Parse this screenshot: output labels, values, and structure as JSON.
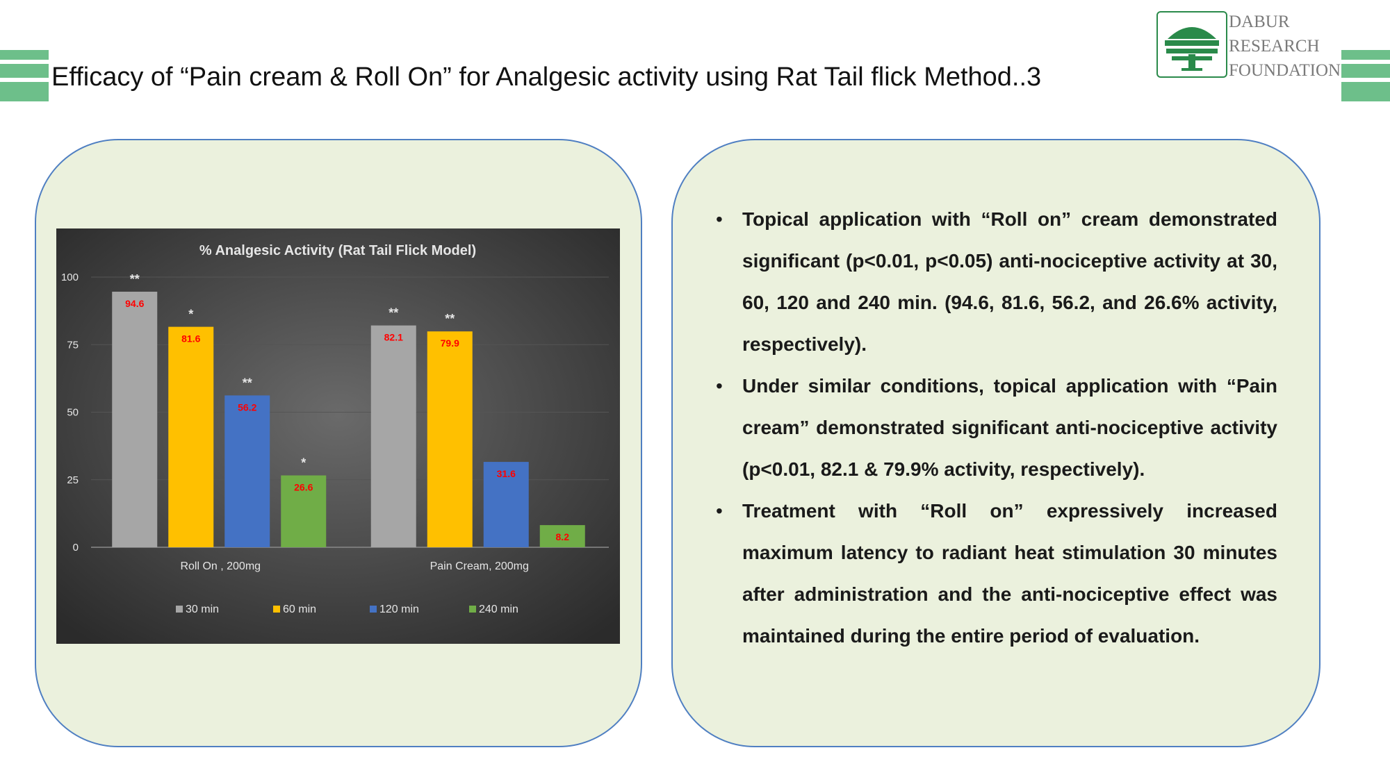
{
  "slide": {
    "title": "Efficacy of “Pain cream & Roll On” for Analgesic activity using Rat Tail flick Method..3",
    "logo_lines": [
      "DABUR",
      "RESEARCH",
      "FOUNDATION"
    ]
  },
  "chart_data": {
    "type": "bar",
    "title": "% Analgesic Activity (Rat Tail Flick Model)",
    "categories": [
      "Roll On , 200mg",
      "Pain Cream, 200mg"
    ],
    "yticks": [
      0,
      25,
      50,
      75,
      100
    ],
    "ylim": [
      0,
      100
    ],
    "legend_position": "bottom",
    "series": [
      {
        "name": "30 min",
        "color": "#a6a6a6",
        "values": [
          94.6,
          82.1
        ],
        "labels": [
          "94.6",
          "82.1"
        ],
        "sig": [
          "**",
          "**"
        ]
      },
      {
        "name": "60 min",
        "color": "#ffc000",
        "values": [
          81.6,
          79.9
        ],
        "labels": [
          "81.6",
          "79.9"
        ],
        "sig": [
          "*",
          "**"
        ]
      },
      {
        "name": "120 min",
        "color": "#4472c4",
        "values": [
          56.2,
          31.6
        ],
        "labels": [
          "56.2",
          "31.6"
        ],
        "sig": [
          "**",
          ""
        ]
      },
      {
        "name": "240 min",
        "color": "#70ad47",
        "values": [
          26.6,
          8.2
        ],
        "labels": [
          "26.6",
          "8.2"
        ],
        "sig": [
          "*",
          ""
        ]
      }
    ],
    "colors": {
      "background": "#3a3a3a",
      "text": "#e6e6e6",
      "data_label": "#ff0000",
      "grid": "#555555"
    }
  },
  "bullets": [
    "Topical application with “Roll on” cream demonstrated significant (p<0.01, p<0.05) anti-nociceptive activity at 30, 60, 120 and 240 min. (94.6, 81.6, 56.2, and 26.6% activity, respectively).",
    "Under similar conditions, topical application with “Pain cream” demonstrated significant anti-nociceptive activity (p<0.01, 82.1 & 79.9% activity, respectively).",
    "Treatment with “Roll on” expressively increased maximum latency to radiant heat stimulation 30 minutes after administration and the anti-nociceptive effect was maintained during the entire period of evaluation."
  ],
  "bullet_symbol": "•"
}
